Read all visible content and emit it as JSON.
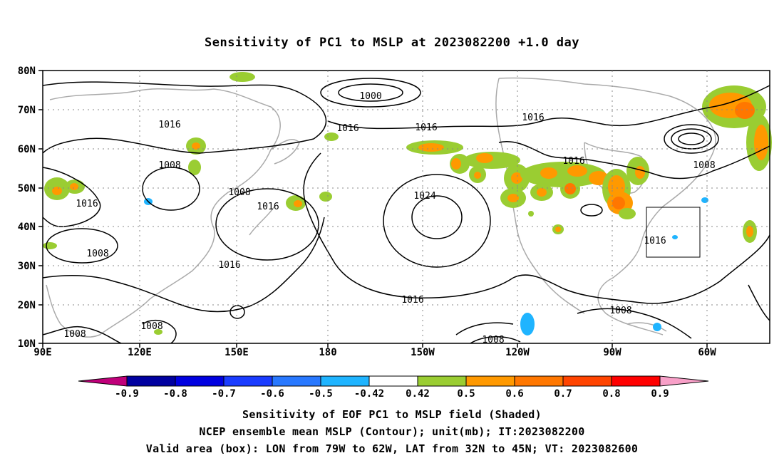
{
  "title": "Sensitivity of PC1 to MSLP at 2023082200 +1.0 day",
  "lat_labels": [
    "80N",
    "70N",
    "60N",
    "50N",
    "40N",
    "30N",
    "20N",
    "10N"
  ],
  "lon_labels": [
    "90E",
    "120E",
    "150E",
    "180",
    "150W",
    "120W",
    "90W",
    "60W"
  ],
  "contour_labels": [
    {
      "text": "1000"
    },
    {
      "text": "1016"
    },
    {
      "text": "1016"
    },
    {
      "text": "1016"
    },
    {
      "text": "1016"
    },
    {
      "text": "1008"
    },
    {
      "text": "1008"
    },
    {
      "text": "1016"
    },
    {
      "text": "1008"
    },
    {
      "text": "1016"
    },
    {
      "text": "1024"
    },
    {
      "text": "1016"
    },
    {
      "text": "1016"
    },
    {
      "text": "1016"
    },
    {
      "text": "1008"
    },
    {
      "text": "1016"
    },
    {
      "text": "1008"
    },
    {
      "text": "1008"
    },
    {
      "text": "1008"
    },
    {
      "text": "1008"
    }
  ],
  "colorbar": {
    "labels": [
      "-0.9",
      "-0.8",
      "-0.7",
      "-0.6",
      "-0.5",
      "-0.42",
      "0.42",
      "0.5",
      "0.6",
      "0.7",
      "0.8",
      "0.9"
    ],
    "colors": [
      "#0000a0",
      "#0000e0",
      "#1a3cff",
      "#2878ff",
      "#1fb4ff",
      "#ffffff",
      "#9acd32",
      "#ff9900",
      "#ff7700",
      "#ff4400",
      "#ff0000"
    ],
    "end_low": "#c0007a",
    "end_high": "#f8a0c8"
  },
  "valid_box": {
    "lon_min": "79W",
    "lon_max": "62W",
    "lat_min": "32N",
    "lat_max": "45N"
  },
  "caption": {
    "line1": "Sensitivity of EOF PC1 to MSLP field (Shaded)",
    "line2": "NCEP ensemble mean MSLP (Contour); unit(mb); IT:2023082200",
    "line3": "Valid area (box): LON from 79W to 62W, LAT from 32N to 45N; VT: 2023082600"
  }
}
